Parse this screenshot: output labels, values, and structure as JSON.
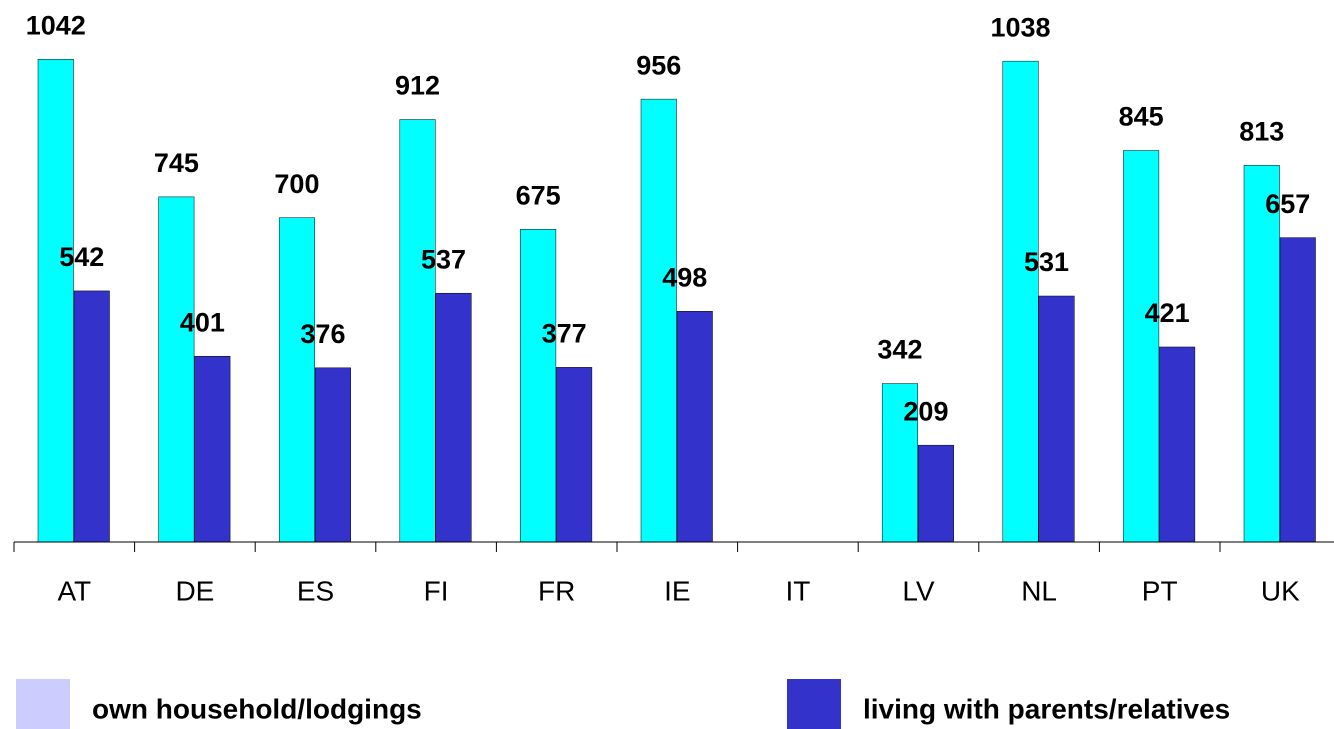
{
  "chart_data": {
    "type": "bar",
    "categories": [
      "AT",
      "DE",
      "ES",
      "FI",
      "FR",
      "IE",
      "IT",
      "LV",
      "NL",
      "PT",
      "UK"
    ],
    "series": [
      {
        "name": "own household/lodgings",
        "color": "#00ffff",
        "legend_color": "#ccccff",
        "values": [
          1042,
          745,
          700,
          912,
          675,
          956,
          null,
          342,
          1038,
          845,
          813
        ]
      },
      {
        "name": "living with parents/relatives",
        "color": "#3333cc",
        "values": [
          542,
          401,
          376,
          537,
          377,
          498,
          null,
          209,
          531,
          421,
          657
        ]
      }
    ],
    "ylim": [
      0,
      1170
    ]
  }
}
